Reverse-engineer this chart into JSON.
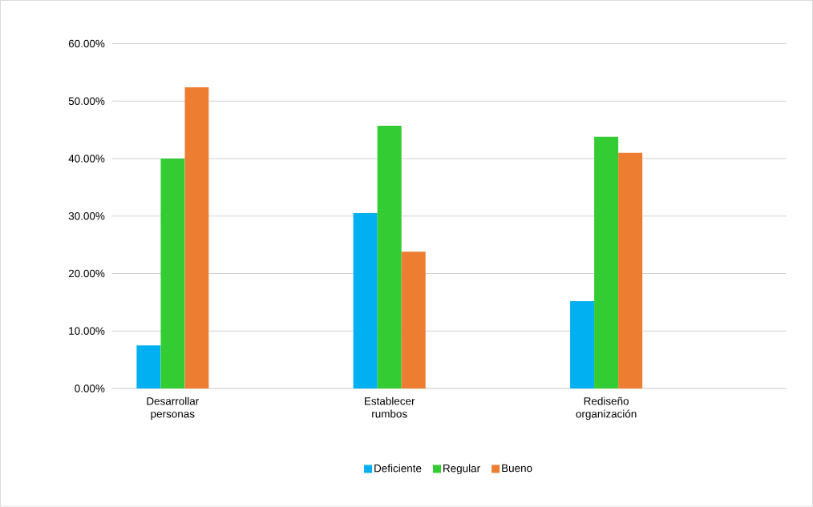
{
  "chart_data": {
    "type": "bar",
    "categories": [
      "Desarrollar personas",
      "Establecer rumbos",
      "Rediseño organización"
    ],
    "series": [
      {
        "name": "Deficiente",
        "color": "#00b0f0",
        "values": [
          7.5,
          30.5,
          15.2
        ]
      },
      {
        "name": "Regular",
        "color": "#33cc33",
        "values": [
          40.0,
          45.7,
          43.8
        ]
      },
      {
        "name": "Bueno",
        "color": "#ed7d31",
        "values": [
          52.4,
          23.8,
          41.0
        ]
      }
    ],
    "ylim": [
      0,
      60
    ],
    "yticks": [
      {
        "value": 0,
        "label": "0.00%"
      },
      {
        "value": 10,
        "label": "10.00%"
      },
      {
        "value": 20,
        "label": "20.00%"
      },
      {
        "value": 30,
        "label": "30.00%"
      },
      {
        "value": 40,
        "label": "40.00%"
      },
      {
        "value": 50,
        "label": "50.00%"
      },
      {
        "value": 60,
        "label": "60.00%"
      }
    ],
    "grid": "y",
    "legend": "bottom"
  }
}
